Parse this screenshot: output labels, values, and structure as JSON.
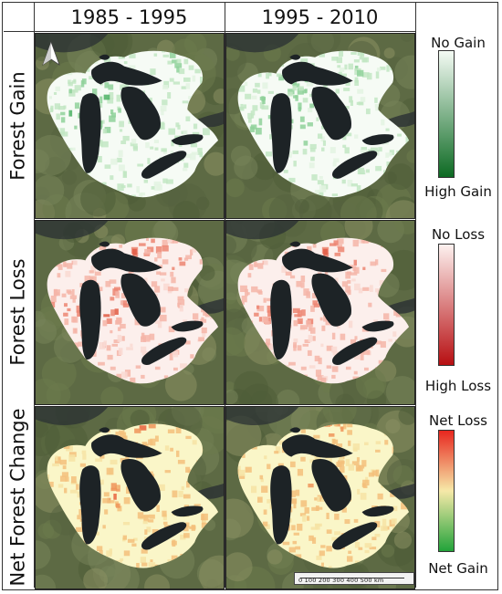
{
  "columns": [
    {
      "label": "1985 - 1995"
    },
    {
      "label": "1995 - 2010"
    }
  ],
  "rows": [
    {
      "label": "Forest Gain",
      "palette": "green",
      "legend": {
        "top_label": "No Gain",
        "bottom_label": "High Gain",
        "colors": [
          "#f4fbf4",
          "#0d6a23"
        ]
      }
    },
    {
      "label": "Forest Loss",
      "palette": "red",
      "legend": {
        "top_label": "No Loss",
        "bottom_label": "High Loss",
        "colors": [
          "#fdf1ef",
          "#b70f12"
        ]
      }
    },
    {
      "label": "Net Forest Change",
      "palette": "diverging",
      "legend": {
        "top_label": "Net Loss",
        "bottom_label": "Net Gain",
        "colors": [
          "#e8271f",
          "#f6e9a8",
          "#22a33a"
        ]
      }
    }
  ],
  "scale_bar": {
    "labels": [
      "0",
      "100",
      "200",
      "300",
      "400",
      "500 km"
    ]
  },
  "north_arrow": "north-arrow-icon",
  "colors": {
    "land": "#5f6b45",
    "lakes": "#1c2226",
    "basin_base": "#f7f9f4"
  }
}
